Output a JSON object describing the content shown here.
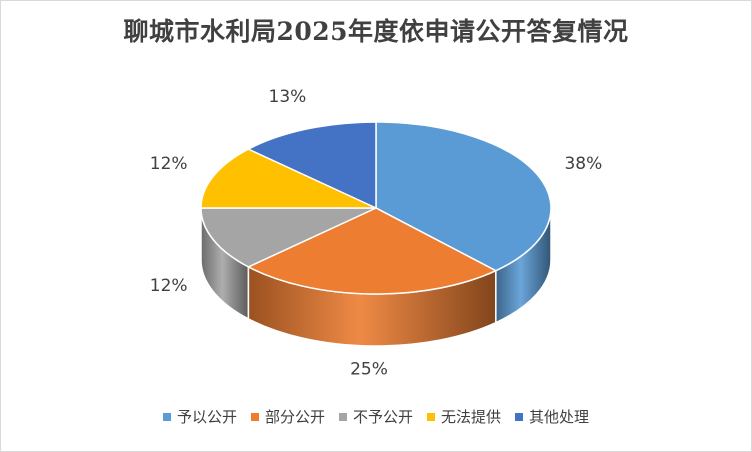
{
  "chart_data": {
    "type": "pie",
    "title": "聊城市水利局2025年度依申请公开答复情况",
    "categories": [
      "予以公开",
      "部分公开",
      "不予公开",
      "无法提供",
      "其他处理"
    ],
    "values": [
      38,
      25,
      12,
      12,
      13
    ],
    "labels": [
      "38%",
      "25%",
      "12%",
      "12%",
      "13%"
    ],
    "colors": [
      "#5B9BD5",
      "#ED7D31",
      "#A5A5A5",
      "#FFC000",
      "#4472C4"
    ],
    "legend_position": "bottom",
    "style": "3d"
  }
}
